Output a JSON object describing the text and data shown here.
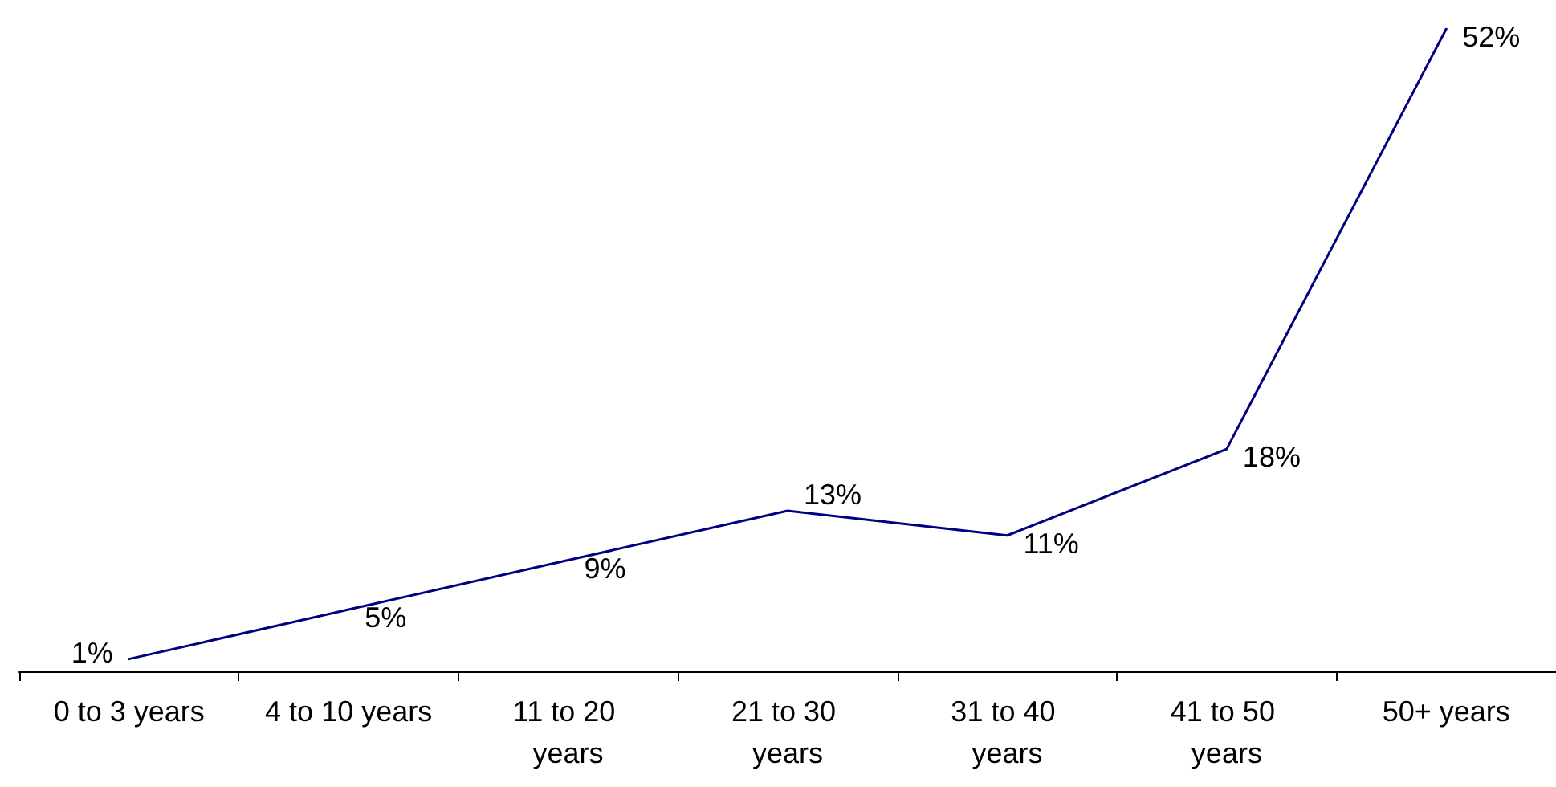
{
  "chart_data": {
    "type": "line",
    "categories": [
      "0 to 3 years",
      "4 to 10 years",
      "11 to 20 years",
      "21 to 30 years",
      "31 to 40 years",
      "41 to 50 years",
      "50+ years"
    ],
    "series": [
      {
        "color": "#000080",
        "values": [
          1,
          5,
          9,
          13,
          11,
          18,
          52
        ],
        "value_labels": [
          "1%",
          "5%",
          "9%",
          "13%",
          "11%",
          "18%",
          "52%"
        ]
      }
    ],
    "tick_labels": "x",
    "grid": false,
    "marker": "none",
    "line_style": "solid"
  }
}
